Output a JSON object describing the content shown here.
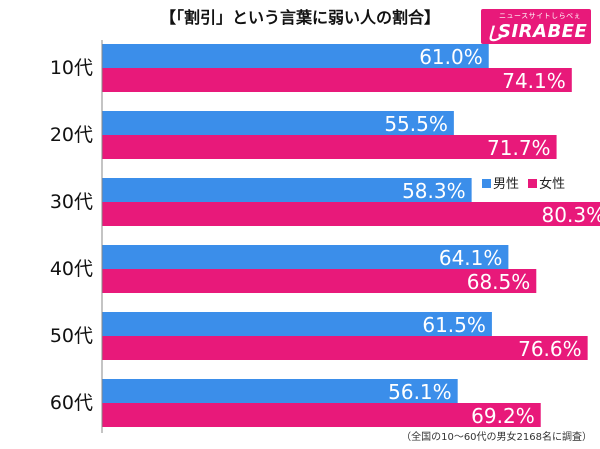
{
  "chart_data": {
    "type": "bar",
    "orientation": "horizontal",
    "title": "【「割引」という言葉に弱い人の割合】",
    "categories": [
      "10代",
      "20代",
      "30代",
      "40代",
      "50代",
      "60代"
    ],
    "series": [
      {
        "name": "男性",
        "color": "#3b8eea",
        "values": [
          61.0,
          55.5,
          58.3,
          64.1,
          61.5,
          56.1
        ]
      },
      {
        "name": "女性",
        "color": "#e8197a",
        "values": [
          74.1,
          71.7,
          80.3,
          68.5,
          76.6,
          69.2
        ]
      }
    ],
    "value_labels": {
      "男性": [
        "61.0%",
        "55.5%",
        "58.3%",
        "64.1%",
        "61.5%",
        "56.1%"
      ],
      "女性": [
        "74.1%",
        "71.7%",
        "80.3%",
        "68.5%",
        "76.6%",
        "69.2%"
      ]
    },
    "xlim": [
      0,
      100
    ],
    "grid": false,
    "legend_position": "right-middle",
    "footnote": "（全国の10〜60代の男女2168名に調査）"
  },
  "logo": {
    "sub_text": "ニュースサイトしらべぇ",
    "main_text": "SIRABEE",
    "mark_text": "し"
  }
}
